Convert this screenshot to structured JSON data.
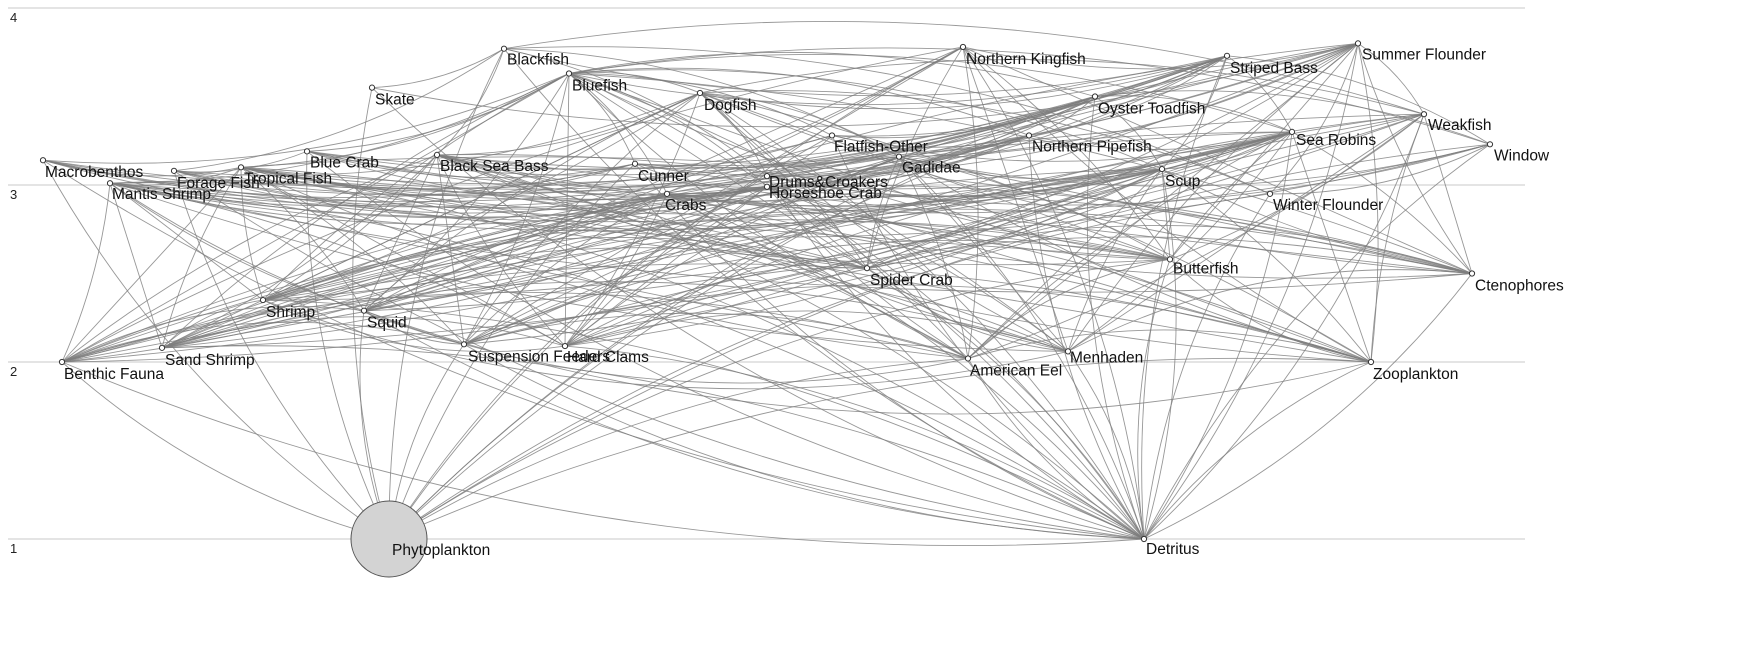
{
  "chart_data": {
    "type": "network",
    "y_ticks": [
      "1",
      "2",
      "3",
      "4"
    ],
    "nodes": [
      {
        "name": "Phytoplankton",
        "level": 1.0,
        "big": true
      },
      {
        "name": "Detritus",
        "level": 1.0
      },
      {
        "name": "Benthic Fauna",
        "level": 2.0
      },
      {
        "name": "Sand Shrimp",
        "level": 2.08
      },
      {
        "name": "Suspension Feeders",
        "level": 2.1
      },
      {
        "name": "Hard Clams",
        "level": 2.09
      },
      {
        "name": "American Eel",
        "level": 2.02
      },
      {
        "name": "Menhaden",
        "level": 2.06
      },
      {
        "name": "Zooplankton",
        "level": 2.0
      },
      {
        "name": "Shrimp",
        "level": 2.35
      },
      {
        "name": "Squid",
        "level": 2.29
      },
      {
        "name": "Spider Crab",
        "level": 2.53
      },
      {
        "name": "Butterfish",
        "level": 2.58
      },
      {
        "name": "Ctenophores",
        "level": 2.5
      },
      {
        "name": "Macrobenthos",
        "level": 3.14
      },
      {
        "name": "Mantis Shrimp",
        "level": 3.01
      },
      {
        "name": "Forage Fish",
        "level": 3.08
      },
      {
        "name": "Tropical Fish",
        "level": 3.1
      },
      {
        "name": "Blue Crab",
        "level": 3.19
      },
      {
        "name": "Black Sea Bass",
        "level": 3.17
      },
      {
        "name": "Cunner",
        "level": 3.12
      },
      {
        "name": "Crabs",
        "level": 2.95
      },
      {
        "name": "Drums&Croakers",
        "level": 3.05
      },
      {
        "name": "Horseshoe Crab",
        "level": 2.99
      },
      {
        "name": "Flatfish-Other",
        "level": 3.28
      },
      {
        "name": "Gadidae",
        "level": 3.16
      },
      {
        "name": "Northern Pipefish",
        "level": 3.28
      },
      {
        "name": "Scup",
        "level": 3.09
      },
      {
        "name": "Winter Flounder",
        "level": 2.95
      },
      {
        "name": "Sea Robins",
        "level": 3.3
      },
      {
        "name": "Window",
        "level": 3.23
      },
      {
        "name": "Weakfish",
        "level": 3.4
      },
      {
        "name": "Oyster Toadfish",
        "level": 3.5
      },
      {
        "name": "Dogfish",
        "level": 3.52
      },
      {
        "name": "Skate",
        "level": 3.55
      },
      {
        "name": "Bluefish",
        "level": 3.63
      },
      {
        "name": "Blackfish",
        "level": 3.77
      },
      {
        "name": "Northern Kingfish",
        "level": 3.78
      },
      {
        "name": "Striped Bass",
        "level": 3.73
      },
      {
        "name": "Summer Flounder",
        "level": 3.8
      }
    ]
  }
}
